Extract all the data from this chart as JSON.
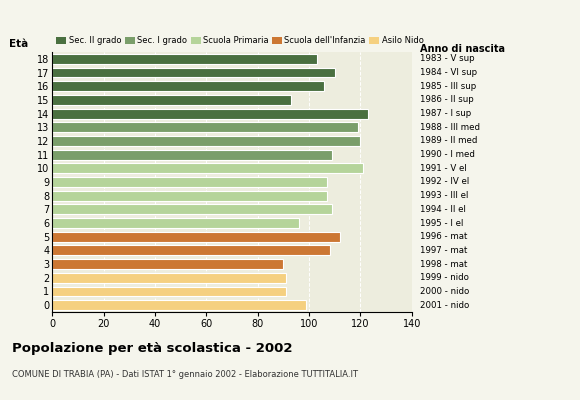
{
  "ages": [
    18,
    17,
    16,
    15,
    14,
    13,
    12,
    11,
    10,
    9,
    8,
    7,
    6,
    5,
    4,
    3,
    2,
    1,
    0
  ],
  "values": [
    103,
    110,
    106,
    93,
    123,
    119,
    120,
    109,
    121,
    107,
    107,
    109,
    96,
    112,
    108,
    90,
    91,
    91,
    99
  ],
  "anno_nascita": [
    "1983 - V sup",
    "1984 - VI sup",
    "1985 - III sup",
    "1986 - II sup",
    "1987 - I sup",
    "1988 - III med",
    "1989 - II med",
    "1990 - I med",
    "1991 - V el",
    "1992 - IV el",
    "1993 - III el",
    "1994 - II el",
    "1995 - I el",
    "1996 - mat",
    "1997 - mat",
    "1998 - mat",
    "1999 - nido",
    "2000 - nido",
    "2001 - nido"
  ],
  "bar_colors": [
    "#4a7040",
    "#4a7040",
    "#4a7040",
    "#4a7040",
    "#4a7040",
    "#7a9e6a",
    "#7a9e6a",
    "#7a9e6a",
    "#b5d49a",
    "#b5d49a",
    "#b5d49a",
    "#b5d49a",
    "#b5d49a",
    "#cc7733",
    "#cc7733",
    "#cc7733",
    "#f5d080",
    "#f5d080",
    "#f5d080"
  ],
  "legend_labels": [
    "Sec. II grado",
    "Sec. I grado",
    "Scuola Primaria",
    "Scuola dell'Infanzia",
    "Asilo Nido"
  ],
  "legend_colors": [
    "#4a7040",
    "#7a9e6a",
    "#b5d49a",
    "#cc7733",
    "#f5d080"
  ],
  "title1": "Popolazione per età scolastica - 2002",
  "title2": "COMUNE DI TRABIA (PA) - Dati ISTAT 1° gennaio 2002 - Elaborazione TUTTITALIA.IT",
  "label_eta": "Età",
  "label_anno": "Anno di nascita",
  "xlim": [
    0,
    140
  ],
  "xticks": [
    0,
    20,
    40,
    60,
    80,
    100,
    120,
    140
  ],
  "grid_x": [
    20,
    40,
    60,
    80,
    100,
    120,
    140
  ],
  "bg_color": "#f5f5ec",
  "plot_bg": "#ededde"
}
